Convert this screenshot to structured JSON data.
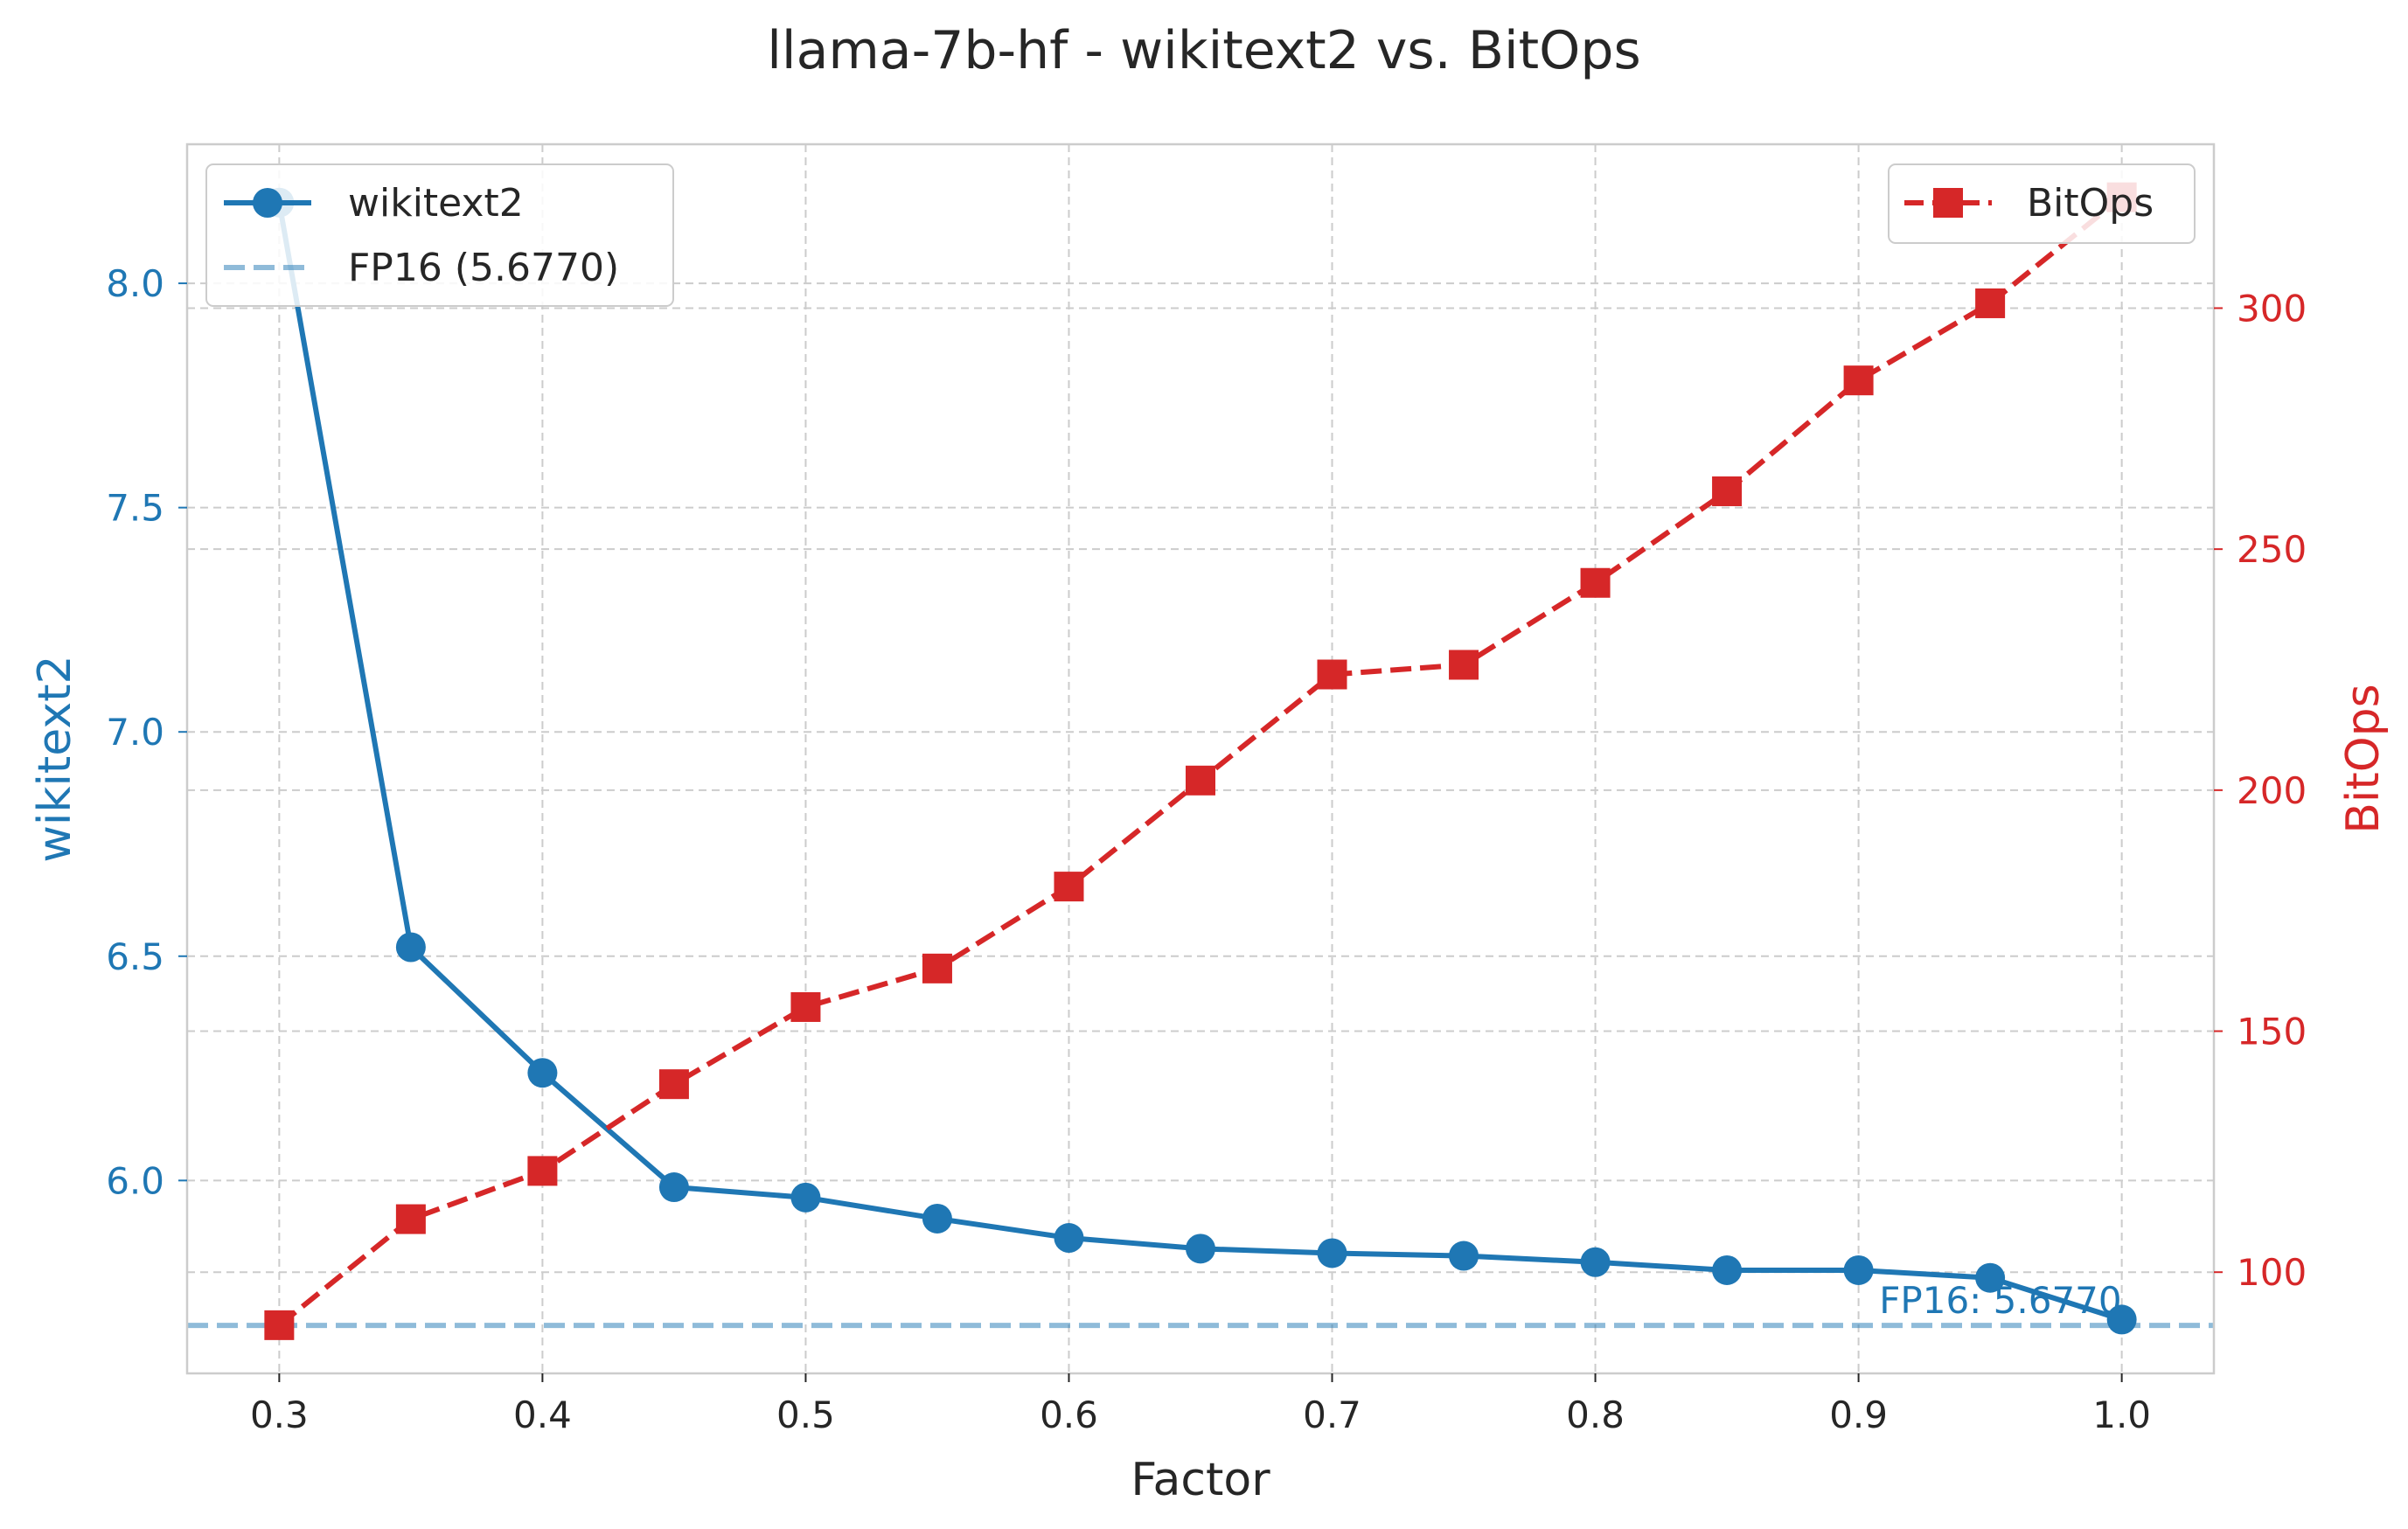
{
  "chart_data": {
    "type": "line",
    "title": "llama-7b-hf - wikitext2 vs. BitOps",
    "xlabel": "Factor",
    "ylabel_left": "wikitext2",
    "ylabel_right": "BitOps",
    "x": [
      0.3,
      0.35,
      0.4,
      0.45,
      0.5,
      0.55,
      0.6,
      0.65,
      0.7,
      0.75,
      0.8,
      0.85,
      0.9,
      0.95,
      1.0
    ],
    "x_ticks": [
      "0.3",
      "0.4",
      "0.5",
      "0.6",
      "0.7",
      "0.8",
      "0.9",
      "1.0"
    ],
    "xlim": [
      0.265,
      1.035
    ],
    "ylim_left": [
      5.57,
      8.31
    ],
    "ylim_right": [
      79,
      334
    ],
    "y_ticks_left": [
      "6.0",
      "6.5",
      "7.0",
      "7.5",
      "8.0"
    ],
    "y_ticks_right": [
      "100",
      "150",
      "200",
      "250",
      "300"
    ],
    "grid": true,
    "series": [
      {
        "name": "wikitext2",
        "axis": "left",
        "color": "#1f77b4",
        "style": "solid",
        "marker": "circle",
        "values": [
          8.18,
          6.52,
          6.24,
          5.985,
          5.962,
          5.915,
          5.872,
          5.848,
          5.838,
          5.832,
          5.818,
          5.8,
          5.8,
          5.783,
          5.69
        ]
      },
      {
        "name": "BitOps",
        "axis": "right",
        "color": "#d62728",
        "style": "dashed",
        "marker": "square",
        "values": [
          89,
          111,
          121,
          139,
          155,
          163,
          180,
          202,
          224,
          226,
          243,
          262,
          285,
          301,
          323
        ]
      }
    ],
    "reference_line": {
      "axis": "left",
      "value": 5.677,
      "legend_label": "FP16 (5.6770)",
      "annotation": "FP16: 5.6770",
      "color": "#1f77b4"
    },
    "legend_left_placement": "upper-left",
    "legend_right_placement": "upper-right"
  }
}
